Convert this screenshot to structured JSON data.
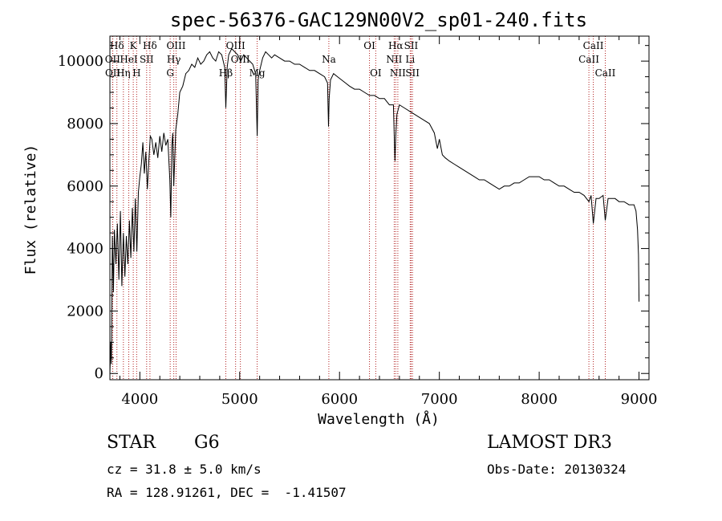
{
  "chart_data": {
    "type": "line",
    "title": "spec-56376-GAC129N00V2_sp01-240.fits",
    "xlabel": "Wavelength (Å)",
    "ylabel": "Flux (relative)",
    "xlim": [
      3700,
      9100
    ],
    "ylim": [
      -200,
      10800
    ],
    "xticks": [
      4000,
      5000,
      6000,
      7000,
      8000,
      9000
    ],
    "yticks": [
      0,
      2000,
      4000,
      6000,
      8000,
      10000
    ],
    "grid": false,
    "series": [
      {
        "name": "spectrum",
        "x": [
          3700,
          3710,
          3715,
          3725,
          3735,
          3745,
          3760,
          3775,
          3790,
          3805,
          3820,
          3835,
          3850,
          3865,
          3880,
          3895,
          3910,
          3925,
          3940,
          3955,
          3970,
          3985,
          4000,
          4015,
          4030,
          4045,
          4060,
          4075,
          4090,
          4105,
          4120,
          4140,
          4160,
          4180,
          4200,
          4220,
          4240,
          4260,
          4280,
          4300,
          4310,
          4320,
          4330,
          4340,
          4360,
          4380,
          4400,
          4430,
          4460,
          4490,
          4520,
          4550,
          4580,
          4610,
          4640,
          4670,
          4700,
          4730,
          4760,
          4790,
          4820,
          4850,
          4861,
          4875,
          4890,
          4920,
          4950,
          4980,
          5010,
          5040,
          5070,
          5100,
          5130,
          5160,
          5175,
          5185,
          5200,
          5230,
          5260,
          5290,
          5320,
          5350,
          5400,
          5450,
          5500,
          5550,
          5600,
          5650,
          5700,
          5750,
          5800,
          5850,
          5880,
          5890,
          5896,
          5910,
          5940,
          5980,
          6020,
          6060,
          6100,
          6150,
          6200,
          6250,
          6300,
          6350,
          6400,
          6450,
          6500,
          6540,
          6555,
          6563,
          6575,
          6600,
          6650,
          6700,
          6750,
          6800,
          6850,
          6900,
          6950,
          6980,
          7000,
          7030,
          7060,
          7100,
          7150,
          7200,
          7250,
          7300,
          7350,
          7400,
          7450,
          7500,
          7550,
          7600,
          7650,
          7700,
          7750,
          7800,
          7850,
          7900,
          7950,
          8000,
          8050,
          8100,
          8150,
          8200,
          8250,
          8300,
          8350,
          8400,
          8450,
          8498,
          8520,
          8542,
          8570,
          8600,
          8640,
          8662,
          8690,
          8720,
          8760,
          8800,
          8850,
          8900,
          8950,
          8970,
          8985,
          8995,
          9000
        ],
        "y": [
          0,
          1000,
          300,
          4400,
          2600,
          4600,
          3500,
          4800,
          3000,
          5200,
          2800,
          4500,
          3100,
          4400,
          3500,
          4900,
          3700,
          5300,
          3900,
          5600,
          3900,
          5800,
          6300,
          6700,
          7400,
          6400,
          7100,
          5900,
          6800,
          7600,
          7500,
          7000,
          7400,
          6900,
          7600,
          7100,
          7700,
          7300,
          7500,
          6200,
          5000,
          7300,
          7700,
          6000,
          7800,
          8300,
          9000,
          9200,
          9600,
          9700,
          9900,
          9800,
          10100,
          9900,
          10000,
          10200,
          10300,
          10100,
          10000,
          10300,
          10200,
          9800,
          8500,
          9800,
          10200,
          10400,
          10300,
          10200,
          10000,
          10200,
          10100,
          10000,
          9900,
          9600,
          7600,
          9400,
          9700,
          10100,
          10300,
          10200,
          10100,
          10200,
          10100,
          10000,
          10000,
          9900,
          9900,
          9800,
          9700,
          9700,
          9600,
          9500,
          9300,
          7900,
          8800,
          9400,
          9600,
          9500,
          9400,
          9300,
          9200,
          9100,
          9100,
          9000,
          8900,
          8900,
          8800,
          8800,
          8600,
          8600,
          6800,
          7600,
          8300,
          8600,
          8500,
          8400,
          8300,
          8200,
          8100,
          8000,
          7700,
          7200,
          7500,
          7000,
          6900,
          6800,
          6700,
          6600,
          6500,
          6400,
          6300,
          6200,
          6200,
          6100,
          6000,
          5900,
          6000,
          6000,
          6100,
          6100,
          6200,
          6300,
          6300,
          6300,
          6200,
          6200,
          6100,
          6000,
          6000,
          5900,
          5800,
          5800,
          5700,
          5500,
          5700,
          4800,
          5600,
          5600,
          5700,
          4900,
          5600,
          5600,
          5600,
          5500,
          5500,
          5400,
          5400,
          5200,
          4600,
          3800,
          2300
        ]
      }
    ],
    "spectral_lines": [
      {
        "label": "Hδ",
        "x": 3770,
        "row": 0
      },
      {
        "label": "OII",
        "x": 3727,
        "row": 1
      },
      {
        "label": "OII",
        "x": 3729,
        "row": 2
      },
      {
        "label": "HeI",
        "x": 3889,
        "row": 1
      },
      {
        "label": "Hη",
        "x": 3835,
        "row": 2
      },
      {
        "label": "K",
        "x": 3934,
        "row": 0
      },
      {
        "label": "H",
        "x": 3968,
        "row": 2
      },
      {
        "label": "SII",
        "x": 4068,
        "row": 1
      },
      {
        "label": "Hδ",
        "x": 4101,
        "row": 0
      },
      {
        "label": "OIII",
        "x": 4363,
        "row": 0
      },
      {
        "label": "Hγ",
        "x": 4340,
        "row": 1
      },
      {
        "label": "G",
        "x": 4304,
        "row": 2
      },
      {
        "label": "Hβ",
        "x": 4861,
        "row": 2
      },
      {
        "label": "OIII",
        "x": 4959,
        "row": 0
      },
      {
        "label": "OIII",
        "x": 5007,
        "row": 1
      },
      {
        "label": "Mg",
        "x": 5175,
        "row": 2
      },
      {
        "label": "Na",
        "x": 5893,
        "row": 1
      },
      {
        "label": "OI",
        "x": 6300,
        "row": 0
      },
      {
        "label": "OI",
        "x": 6363,
        "row": 2
      },
      {
        "label": "Hα",
        "x": 6563,
        "row": 0
      },
      {
        "label": "NII",
        "x": 6548,
        "row": 1
      },
      {
        "label": "NII",
        "x": 6584,
        "row": 2
      },
      {
        "label": "SII",
        "x": 6717,
        "row": 0
      },
      {
        "label": "Li",
        "x": 6708,
        "row": 1
      },
      {
        "label": "SII",
        "x": 6731,
        "row": 2
      },
      {
        "label": "CaII",
        "x": 8542,
        "row": 0
      },
      {
        "label": "CaII",
        "x": 8498,
        "row": 1
      },
      {
        "label": "CaII",
        "x": 8662,
        "row": 2
      }
    ]
  },
  "info": {
    "object_class": "STAR",
    "subclass": "G6",
    "cz": "cz = 31.8 ± 5.0 km/s",
    "coords": "RA = 128.91261, DEC =  -1.41507",
    "survey": "LAMOST DR3",
    "obs_date": "Obs-Date: 20130324"
  },
  "colors": {
    "line_marker": "#b22222",
    "spectrum": "#000000",
    "axis": "#000000"
  }
}
